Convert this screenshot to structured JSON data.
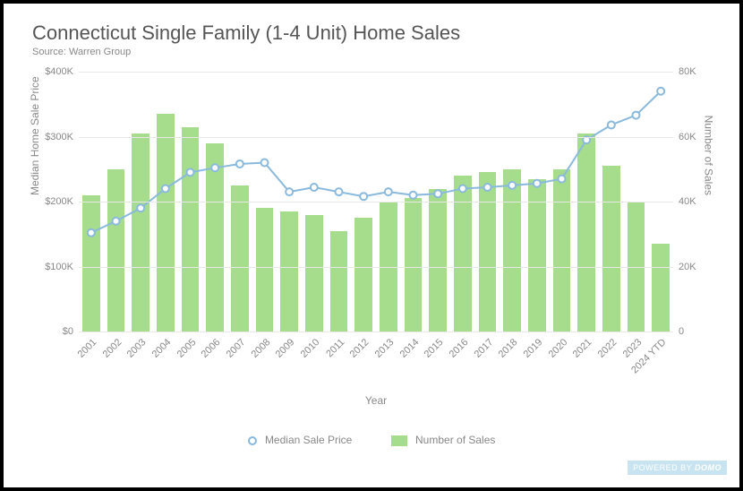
{
  "title": "Connecticut Single Family (1-4 Unit) Home Sales",
  "subtitle": "Source: Warren Group",
  "x_axis_label": "Year",
  "y_axis_left_label": "Median Home Sale Price",
  "y_axis_right_label": "Number of Sales",
  "legend_line": "Median Sale Price",
  "legend_bar": "Number of Sales",
  "badge_prefix": "POWERED BY ",
  "badge_brand": "DOMO",
  "chart": {
    "type": "combo-bar-line",
    "background_color": "#ffffff",
    "grid_color": "#e8e8e8",
    "text_color": "#888888",
    "title_color": "#555555",
    "title_fontsize": 22,
    "subtitle_fontsize": 11,
    "axis_fontsize": 11,
    "label_fontsize": 12,
    "bar_color": "#a6dd8c",
    "line_color": "#8ab9de",
    "marker_fill": "#ffffff",
    "marker_size": 4,
    "line_width": 2,
    "bar_width_ratio": 0.72,
    "y_left": {
      "min": 0,
      "max": 400000,
      "step": 100000,
      "ticks": [
        "$0",
        "$100K",
        "$200K",
        "$300K",
        "$400K"
      ]
    },
    "y_right": {
      "min": 0,
      "max": 80000,
      "step": 20000,
      "ticks": [
        "0",
        "20K",
        "40K",
        "60K",
        "80K"
      ]
    },
    "categories": [
      "2001",
      "2002",
      "2003",
      "2004",
      "2005",
      "2006",
      "2007",
      "2008",
      "2009",
      "2010",
      "2011",
      "2012",
      "2013",
      "2014",
      "2015",
      "2016",
      "2017",
      "2018",
      "2019",
      "2020",
      "2021",
      "2022",
      "2023",
      "2024 YTD"
    ],
    "bar_values": [
      42000,
      50000,
      61000,
      67000,
      63000,
      58000,
      45000,
      38000,
      37000,
      36000,
      31000,
      35000,
      40000,
      41000,
      44000,
      48000,
      49000,
      50000,
      47000,
      50000,
      61000,
      51000,
      40000,
      27000
    ],
    "line_values": [
      152000,
      170000,
      190000,
      220000,
      245000,
      252000,
      258000,
      260000,
      215000,
      222000,
      215000,
      208000,
      215000,
      210000,
      212000,
      220000,
      222000,
      225000,
      228000,
      235000,
      295000,
      318000,
      333000,
      370000
    ]
  }
}
